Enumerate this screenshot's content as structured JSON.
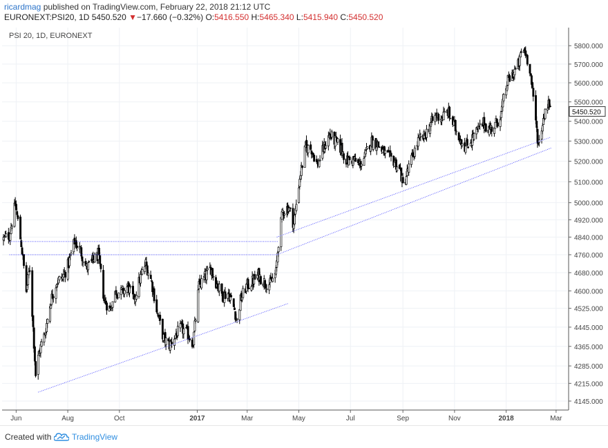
{
  "header": {
    "user": "ricardmag",
    "published_text": " published on TradingView.com, February 22, 2018 21:12 UTC",
    "symbol": "EURONEXT:PSI20, 1D",
    "last": "5450.520",
    "change_symbol": "▼",
    "change": "−17.660 (−0.32%)",
    "o_label": "O:",
    "o_value": "5416.550",
    "h_label": "H:",
    "h_value": "5465.340",
    "l_label": "L:",
    "l_value": "5415.940",
    "c_label": "C:",
    "c_value": "5450.520"
  },
  "footer": {
    "created_with": "Created with",
    "brand": "TradingView"
  },
  "colors": {
    "background": "#ffffff",
    "candles": "#000000",
    "grid": "#eef1f5",
    "trendlines": "#4b4bff",
    "axis_text": "#444444",
    "brand": "#2f8ee0",
    "down": "#d32f2f"
  },
  "chart_data": {
    "type": "candlestick",
    "title": "PSI 20, 1D, EURONEXT",
    "xlabel": "",
    "ylabel": "",
    "scale": "log",
    "ylim": [
      4110,
      5900
    ],
    "price_scale_side": "right",
    "grid": true,
    "last_price_label": "5450.520",
    "y_ticks": [
      4145,
      4215,
      4285,
      4365,
      4445,
      4525,
      4600,
      4680,
      4760,
      4840,
      4920,
      5000,
      5100,
      5200,
      5300,
      5400,
      5500,
      5600,
      5700,
      5800
    ],
    "x_ticks": [
      {
        "label": "Jun",
        "date": "2016-06-01",
        "bold": false
      },
      {
        "label": "Aug",
        "date": "2016-08-01",
        "bold": false
      },
      {
        "label": "Oct",
        "date": "2016-10-01",
        "bold": false
      },
      {
        "label": "2017",
        "date": "2017-01-01",
        "bold": true
      },
      {
        "label": "Mar",
        "date": "2017-03-01",
        "bold": false
      },
      {
        "label": "May",
        "date": "2017-05-01",
        "bold": false
      },
      {
        "label": "Jul",
        "date": "2017-07-01",
        "bold": false
      },
      {
        "label": "Sep",
        "date": "2017-09-01",
        "bold": false
      },
      {
        "label": "Nov",
        "date": "2017-11-01",
        "bold": false
      },
      {
        "label": "2018",
        "date": "2018-01-01",
        "bold": true
      },
      {
        "label": "Mar",
        "date": "2018-03-01",
        "bold": false
      }
    ],
    "path_closes": [
      [
        "2016-05-17",
        4830
      ],
      [
        "2016-05-24",
        4850
      ],
      [
        "2016-05-31",
        4990
      ],
      [
        "2016-06-07",
        4810
      ],
      [
        "2016-06-13",
        4600
      ],
      [
        "2016-06-17",
        4700
      ],
      [
        "2016-06-24",
        4250
      ],
      [
        "2016-06-28",
        4340
      ],
      [
        "2016-07-05",
        4420
      ],
      [
        "2016-07-12",
        4560
      ],
      [
        "2016-07-19",
        4640
      ],
      [
        "2016-07-26",
        4660
      ],
      [
        "2016-08-02",
        4720
      ],
      [
        "2016-08-09",
        4820
      ],
      [
        "2016-08-16",
        4780
      ],
      [
        "2016-08-23",
        4700
      ],
      [
        "2016-08-30",
        4730
      ],
      [
        "2016-09-06",
        4760
      ],
      [
        "2016-09-13",
        4560
      ],
      [
        "2016-09-20",
        4520
      ],
      [
        "2016-09-27",
        4600
      ],
      [
        "2016-10-04",
        4590
      ],
      [
        "2016-10-11",
        4620
      ],
      [
        "2016-10-18",
        4560
      ],
      [
        "2016-10-25",
        4650
      ],
      [
        "2016-11-01",
        4720
      ],
      [
        "2016-11-08",
        4640
      ],
      [
        "2016-11-15",
        4500
      ],
      [
        "2016-11-22",
        4400
      ],
      [
        "2016-11-29",
        4370
      ],
      [
        "2016-12-06",
        4410
      ],
      [
        "2016-12-13",
        4440
      ],
      [
        "2016-12-20",
        4420
      ],
      [
        "2016-12-27",
        4380
      ],
      [
        "2017-01-03",
        4620
      ],
      [
        "2017-01-10",
        4660
      ],
      [
        "2017-01-17",
        4700
      ],
      [
        "2017-01-24",
        4630
      ],
      [
        "2017-01-31",
        4580
      ],
      [
        "2017-02-07",
        4590
      ],
      [
        "2017-02-14",
        4520
      ],
      [
        "2017-02-17",
        4470
      ],
      [
        "2017-02-21",
        4560
      ],
      [
        "2017-02-28",
        4620
      ],
      [
        "2017-03-07",
        4640
      ],
      [
        "2017-03-14",
        4670
      ],
      [
        "2017-03-21",
        4640
      ],
      [
        "2017-03-28",
        4630
      ],
      [
        "2017-04-04",
        4680
      ],
      [
        "2017-04-07",
        4820
      ],
      [
        "2017-04-12",
        4960
      ],
      [
        "2017-04-19",
        4980
      ],
      [
        "2017-04-25",
        4900
      ],
      [
        "2017-05-02",
        5120
      ],
      [
        "2017-05-09",
        5270
      ],
      [
        "2017-05-16",
        5260
      ],
      [
        "2017-05-23",
        5180
      ],
      [
        "2017-05-30",
        5260
      ],
      [
        "2017-06-06",
        5330
      ],
      [
        "2017-06-13",
        5300
      ],
      [
        "2017-06-20",
        5260
      ],
      [
        "2017-06-27",
        5200
      ],
      [
        "2017-07-04",
        5210
      ],
      [
        "2017-07-11",
        5180
      ],
      [
        "2017-07-18",
        5220
      ],
      [
        "2017-07-25",
        5300
      ],
      [
        "2017-08-01",
        5290
      ],
      [
        "2017-08-08",
        5250
      ],
      [
        "2017-08-15",
        5220
      ],
      [
        "2017-08-22",
        5200
      ],
      [
        "2017-08-29",
        5150
      ],
      [
        "2017-09-01",
        5080
      ],
      [
        "2017-09-05",
        5130
      ],
      [
        "2017-09-12",
        5220
      ],
      [
        "2017-09-19",
        5300
      ],
      [
        "2017-09-26",
        5320
      ],
      [
        "2017-10-03",
        5380
      ],
      [
        "2017-10-10",
        5430
      ],
      [
        "2017-10-17",
        5420
      ],
      [
        "2017-10-24",
        5450
      ],
      [
        "2017-10-31",
        5380
      ],
      [
        "2017-11-07",
        5320
      ],
      [
        "2017-11-14",
        5270
      ],
      [
        "2017-11-21",
        5310
      ],
      [
        "2017-11-28",
        5350
      ],
      [
        "2017-12-05",
        5390
      ],
      [
        "2017-12-12",
        5360
      ],
      [
        "2017-12-19",
        5380
      ],
      [
        "2017-12-26",
        5440
      ],
      [
        "2018-01-02",
        5600
      ],
      [
        "2018-01-09",
        5650
      ],
      [
        "2018-01-16",
        5700
      ],
      [
        "2018-01-20",
        5790
      ],
      [
        "2018-01-24",
        5760
      ],
      [
        "2018-01-29",
        5680
      ],
      [
        "2018-02-01",
        5550
      ],
      [
        "2018-02-05",
        5400
      ],
      [
        "2018-02-08",
        5280
      ],
      [
        "2018-02-12",
        5370
      ],
      [
        "2018-02-16",
        5460
      ],
      [
        "2018-02-20",
        5500
      ],
      [
        "2018-02-22",
        5450
      ]
    ],
    "annotations": {
      "horizontal_lines": [
        {
          "from": [
            "2016-05-24",
            4820
          ],
          "to": [
            "2017-04-06",
            4820
          ]
        },
        {
          "from": [
            "2016-05-24",
            4760
          ],
          "to": [
            "2017-04-06",
            4760
          ]
        }
      ],
      "trend_lines": [
        {
          "from": [
            "2016-06-27",
            4180
          ],
          "to": [
            "2017-04-18",
            4545
          ]
        },
        {
          "from": [
            "2017-04-05",
            4840
          ],
          "to": [
            "2018-02-23",
            5320
          ]
        },
        {
          "from": [
            "2017-04-05",
            4760
          ],
          "to": [
            "2018-02-23",
            5265
          ]
        }
      ]
    }
  }
}
